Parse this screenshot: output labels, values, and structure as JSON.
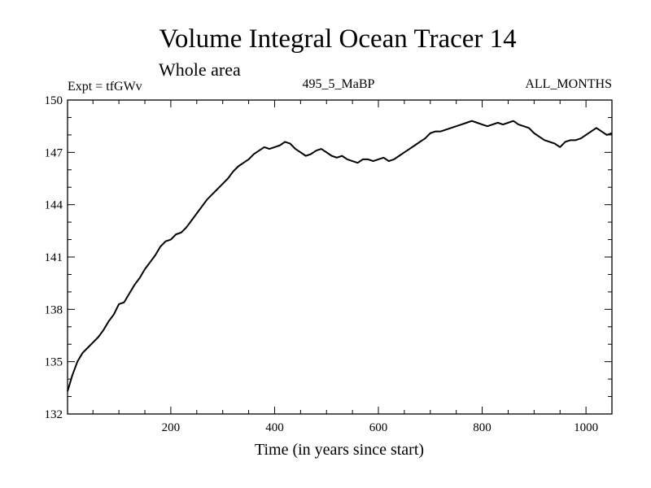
{
  "chart_data": {
    "type": "line",
    "title": "Volume Integral Ocean Tracer 14",
    "subtitle": "Whole area",
    "experiment_label": "Expt = tfGWv",
    "run_label": "495_5_MaBP",
    "months_label": "ALL_MONTHS",
    "xlabel": "Time (in years since start)",
    "ylabel": "",
    "xlim": [
      1,
      1050
    ],
    "ylim": [
      132,
      150
    ],
    "x_major_ticks": [
      200,
      400,
      600,
      800,
      1000
    ],
    "x_minor_step": 50,
    "y_major_ticks": [
      132,
      135,
      138,
      141,
      144,
      147,
      150
    ],
    "y_minor_step": 1,
    "series": [
      {
        "name": "Volume Integral Ocean Tracer 14",
        "color": "#000000",
        "x": [
          1,
          10,
          20,
          30,
          40,
          50,
          60,
          70,
          80,
          90,
          100,
          110,
          120,
          130,
          140,
          150,
          160,
          170,
          180,
          190,
          200,
          210,
          220,
          230,
          240,
          250,
          260,
          270,
          280,
          290,
          300,
          310,
          320,
          330,
          340,
          350,
          360,
          370,
          380,
          390,
          400,
          410,
          420,
          430,
          440,
          450,
          460,
          470,
          480,
          490,
          500,
          510,
          520,
          530,
          540,
          550,
          560,
          570,
          580,
          590,
          600,
          610,
          620,
          630,
          640,
          650,
          660,
          670,
          680,
          690,
          700,
          710,
          720,
          730,
          740,
          750,
          760,
          770,
          780,
          790,
          800,
          810,
          820,
          830,
          840,
          850,
          860,
          870,
          880,
          890,
          900,
          910,
          920,
          930,
          940,
          950,
          960,
          970,
          980,
          990,
          1000,
          1010,
          1020,
          1030,
          1040,
          1050
        ],
        "y": [
          133.3,
          134.2,
          135.0,
          135.5,
          135.8,
          136.1,
          136.4,
          136.8,
          137.3,
          137.7,
          138.3,
          138.4,
          138.9,
          139.4,
          139.8,
          140.3,
          140.7,
          141.1,
          141.6,
          141.9,
          142.0,
          142.3,
          142.4,
          142.7,
          143.1,
          143.5,
          143.9,
          144.3,
          144.6,
          144.9,
          145.2,
          145.5,
          145.9,
          146.2,
          146.4,
          146.6,
          146.9,
          147.1,
          147.3,
          147.2,
          147.3,
          147.4,
          147.6,
          147.5,
          147.2,
          147.0,
          146.8,
          146.9,
          147.1,
          147.2,
          147.0,
          146.8,
          146.7,
          146.8,
          146.6,
          146.5,
          146.4,
          146.6,
          146.6,
          146.5,
          146.6,
          146.7,
          146.5,
          146.6,
          146.8,
          147.0,
          147.2,
          147.4,
          147.6,
          147.8,
          148.1,
          148.2,
          148.2,
          148.3,
          148.4,
          148.5,
          148.6,
          148.7,
          148.8,
          148.7,
          148.6,
          148.5,
          148.6,
          148.7,
          148.6,
          148.7,
          148.8,
          148.6,
          148.5,
          148.4,
          148.1,
          147.9,
          147.7,
          147.6,
          147.5,
          147.3,
          147.6,
          147.7,
          147.7,
          147.8,
          148.0,
          148.2,
          148.4,
          148.2,
          148.0,
          148.1
        ]
      }
    ]
  }
}
